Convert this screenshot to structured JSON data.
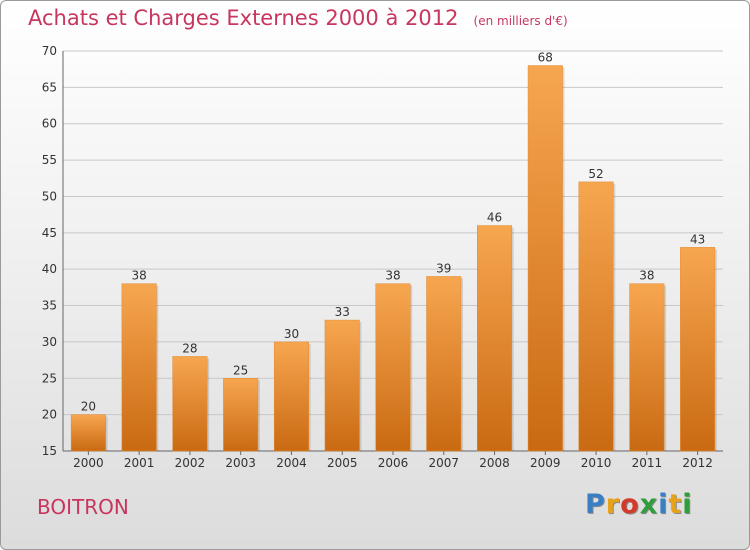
{
  "chart_data": {
    "type": "bar",
    "title": "Achats et Charges Externes 2000 à 2012",
    "subtitle": "(en milliers d'€)",
    "categories": [
      "2000",
      "2001",
      "2002",
      "2003",
      "2004",
      "2005",
      "2006",
      "2007",
      "2008",
      "2009",
      "2010",
      "2011",
      "2012"
    ],
    "values": [
      20,
      38,
      28,
      25,
      30,
      33,
      38,
      39,
      46,
      68,
      52,
      38,
      43
    ],
    "ylim": [
      15,
      70
    ],
    "yticks": [
      15,
      20,
      25,
      30,
      35,
      40,
      45,
      50,
      55,
      60,
      65,
      70
    ],
    "grid": true,
    "colors": {
      "bar_top": "#f7a650",
      "bar_bottom": "#c96a12",
      "grid": "#c8c8c8",
      "accent": "#c8365e"
    }
  },
  "footer": {
    "commune": "BOITRON",
    "logo": "Proxiti",
    "logo_colors": [
      "#3a7fc4",
      "#e8a21a",
      "#d43a2a",
      "#2f9e3a",
      "#3a7fc4",
      "#e8a21a",
      "#2f9e3a"
    ]
  }
}
